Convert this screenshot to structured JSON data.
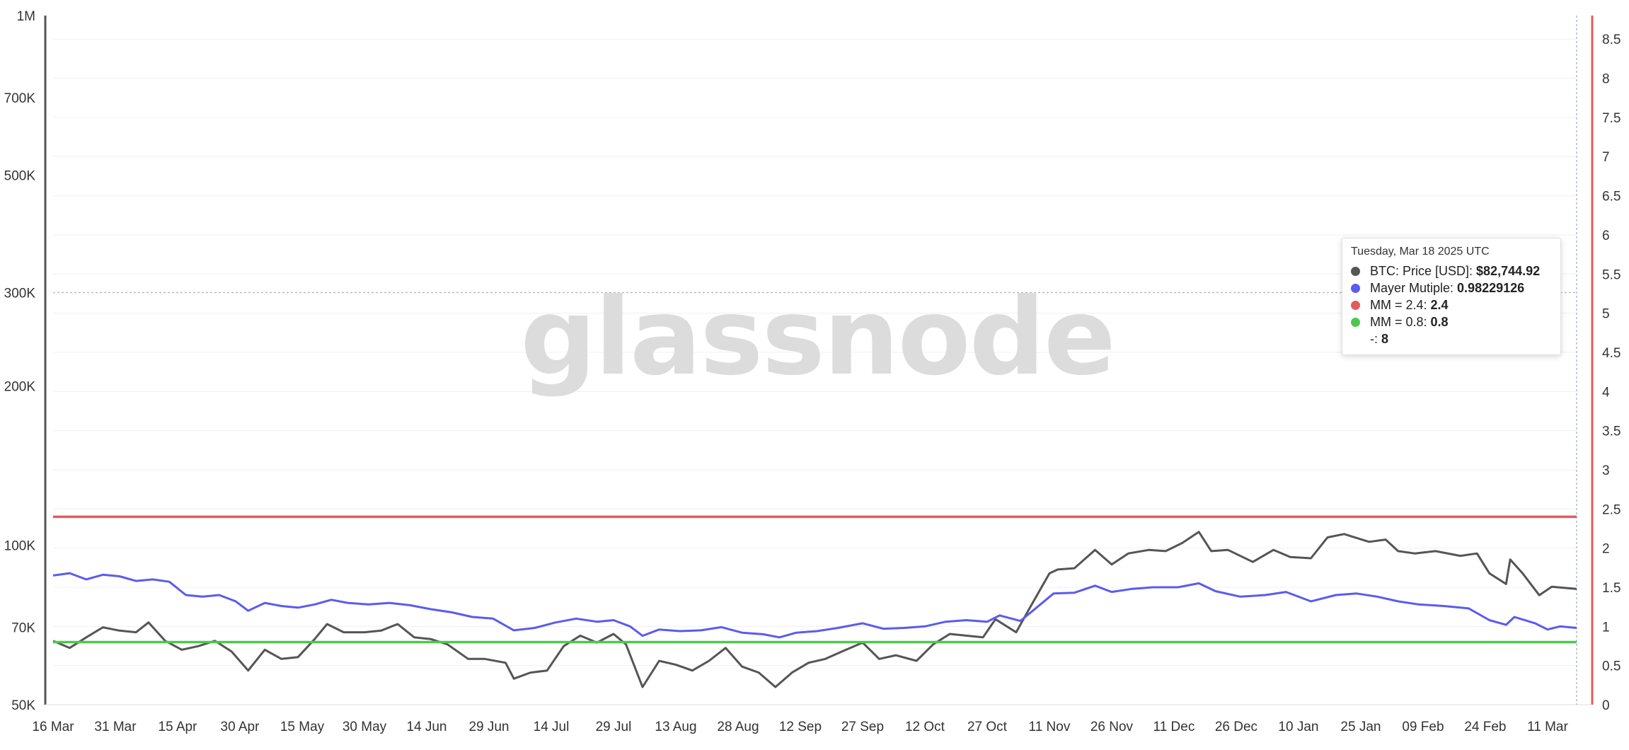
{
  "watermark": "glassnode",
  "tooltip": {
    "date": "Tuesday, Mar 18 2025 UTC",
    "rows": [
      {
        "label": "BTC: Price [USD]:",
        "value": "$82,744.92",
        "color": "#555555"
      },
      {
        "label": "Mayer Mutiple:",
        "value": "0.98229126",
        "color": "#5b5bef"
      },
      {
        "label": "MM = 2.4:",
        "value": "2.4",
        "color": "#e35b5b"
      },
      {
        "label": "MM = 0.8:",
        "value": "0.8",
        "color": "#4cc94c"
      },
      {
        "label": "-:",
        "value": "8",
        "color": ""
      }
    ]
  },
  "chart_data": {
    "type": "line",
    "x_axis": {
      "start": "2024-03-16",
      "end": "2025-03-18",
      "tick_labels": [
        "16 Mar",
        "31 Mar",
        "15 Apr",
        "30 Apr",
        "15 May",
        "30 May",
        "14 Jun",
        "29 Jun",
        "14 Jul",
        "29 Jul",
        "13 Aug",
        "28 Aug",
        "12 Sep",
        "27 Sep",
        "12 Oct",
        "27 Oct",
        "11 Nov",
        "26 Nov",
        "11 Dec",
        "26 Dec",
        "10 Jan",
        "25 Jan",
        "09 Feb",
        "24 Feb",
        "11 Mar"
      ]
    },
    "y_left": {
      "scale": "log",
      "ylim": [
        50000,
        1000000
      ],
      "tick_values": [
        50000,
        70000,
        100000,
        200000,
        300000,
        500000,
        700000,
        1000000
      ],
      "tick_labels": [
        "50K",
        "70K",
        "100K",
        "200K",
        "300K",
        "500K",
        "700K",
        "1M"
      ],
      "dashed_gridline": 300000
    },
    "y_right": {
      "scale": "linear",
      "ylim": [
        0,
        8.8
      ],
      "tick_labels": [
        "0",
        "0.5",
        "1",
        "1.5",
        "2",
        "2.5",
        "3",
        "3.5",
        "4",
        "4.5",
        "5",
        "5.5",
        "6",
        "6.5",
        "7",
        "7.5",
        "8",
        "8.5"
      ]
    },
    "series": [
      {
        "name": "BTC: Price [USD]",
        "axis": "left",
        "color": "#555555",
        "points": [
          [
            "2024-03-16",
            66000
          ],
          [
            "2024-03-20",
            64000
          ],
          [
            "2024-03-24",
            67000
          ],
          [
            "2024-03-28",
            70000
          ],
          [
            "2024-04-01",
            69000
          ],
          [
            "2024-04-05",
            68500
          ],
          [
            "2024-04-08",
            71500
          ],
          [
            "2024-04-12",
            66000
          ],
          [
            "2024-04-16",
            63500
          ],
          [
            "2024-04-20",
            64500
          ],
          [
            "2024-04-24",
            66000
          ],
          [
            "2024-04-28",
            63000
          ],
          [
            "2024-05-02",
            58000
          ],
          [
            "2024-05-06",
            63500
          ],
          [
            "2024-05-10",
            61000
          ],
          [
            "2024-05-14",
            61500
          ],
          [
            "2024-05-18",
            66500
          ],
          [
            "2024-05-21",
            71000
          ],
          [
            "2024-05-25",
            68500
          ],
          [
            "2024-05-30",
            68500
          ],
          [
            "2024-06-03",
            69000
          ],
          [
            "2024-06-07",
            71000
          ],
          [
            "2024-06-11",
            67000
          ],
          [
            "2024-06-15",
            66500
          ],
          [
            "2024-06-19",
            65000
          ],
          [
            "2024-06-24",
            61000
          ],
          [
            "2024-06-28",
            61000
          ],
          [
            "2024-07-03",
            60000
          ],
          [
            "2024-07-05",
            56000
          ],
          [
            "2024-07-09",
            57500
          ],
          [
            "2024-07-13",
            58000
          ],
          [
            "2024-07-17",
            64500
          ],
          [
            "2024-07-21",
            67500
          ],
          [
            "2024-07-25",
            65500
          ],
          [
            "2024-07-29",
            68000
          ],
          [
            "2024-08-01",
            65000
          ],
          [
            "2024-08-05",
            54000
          ],
          [
            "2024-08-09",
            60500
          ],
          [
            "2024-08-13",
            59500
          ],
          [
            "2024-08-17",
            58000
          ],
          [
            "2024-08-21",
            60500
          ],
          [
            "2024-08-25",
            64000
          ],
          [
            "2024-08-29",
            59000
          ],
          [
            "2024-09-02",
            57500
          ],
          [
            "2024-09-06",
            54000
          ],
          [
            "2024-09-10",
            57500
          ],
          [
            "2024-09-14",
            60000
          ],
          [
            "2024-09-18",
            61000
          ],
          [
            "2024-09-22",
            63000
          ],
          [
            "2024-09-27",
            65500
          ],
          [
            "2024-10-01",
            61000
          ],
          [
            "2024-10-05",
            62000
          ],
          [
            "2024-10-10",
            60500
          ],
          [
            "2024-10-14",
            65000
          ],
          [
            "2024-10-18",
            68000
          ],
          [
            "2024-10-22",
            67500
          ],
          [
            "2024-10-26",
            67000
          ],
          [
            "2024-10-29",
            72500
          ],
          [
            "2024-11-03",
            68500
          ],
          [
            "2024-11-06",
            75500
          ],
          [
            "2024-11-11",
            88500
          ],
          [
            "2024-11-13",
            90000
          ],
          [
            "2024-11-17",
            90500
          ],
          [
            "2024-11-22",
            98000
          ],
          [
            "2024-11-26",
            92000
          ],
          [
            "2024-11-30",
            96500
          ],
          [
            "2024-12-05",
            98000
          ],
          [
            "2024-12-09",
            97500
          ],
          [
            "2024-12-13",
            101000
          ],
          [
            "2024-12-17",
            106000
          ],
          [
            "2024-12-20",
            97500
          ],
          [
            "2024-12-24",
            98000
          ],
          [
            "2024-12-30",
            93000
          ],
          [
            "2025-01-04",
            98000
          ],
          [
            "2025-01-08",
            95000
          ],
          [
            "2025-01-13",
            94500
          ],
          [
            "2025-01-17",
            103500
          ],
          [
            "2025-01-21",
            105000
          ],
          [
            "2025-01-27",
            101500
          ],
          [
            "2025-01-31",
            102500
          ],
          [
            "2025-02-03",
            97500
          ],
          [
            "2025-02-07",
            96500
          ],
          [
            "2025-02-12",
            97500
          ],
          [
            "2025-02-18",
            95500
          ],
          [
            "2025-02-22",
            96500
          ],
          [
            "2025-02-25",
            88500
          ],
          [
            "2025-03-01",
            84500
          ],
          [
            "2025-03-02",
            94000
          ],
          [
            "2025-03-05",
            88500
          ],
          [
            "2025-03-09",
            80500
          ],
          [
            "2025-03-12",
            83500
          ],
          [
            "2025-03-18",
            82700
          ]
        ]
      },
      {
        "name": "Mayer Mutiple",
        "axis": "right",
        "color": "#5b5bef",
        "points": [
          [
            "2024-03-16",
            1.65
          ],
          [
            "2024-03-20",
            1.68
          ],
          [
            "2024-03-24",
            1.6
          ],
          [
            "2024-03-28",
            1.66
          ],
          [
            "2024-04-01",
            1.64
          ],
          [
            "2024-04-05",
            1.58
          ],
          [
            "2024-04-09",
            1.6
          ],
          [
            "2024-04-13",
            1.57
          ],
          [
            "2024-04-17",
            1.4
          ],
          [
            "2024-04-21",
            1.38
          ],
          [
            "2024-04-25",
            1.4
          ],
          [
            "2024-04-29",
            1.32
          ],
          [
            "2024-05-02",
            1.2
          ],
          [
            "2024-05-06",
            1.3
          ],
          [
            "2024-05-10",
            1.26
          ],
          [
            "2024-05-14",
            1.24
          ],
          [
            "2024-05-18",
            1.28
          ],
          [
            "2024-05-22",
            1.34
          ],
          [
            "2024-05-26",
            1.3
          ],
          [
            "2024-05-31",
            1.28
          ],
          [
            "2024-06-05",
            1.3
          ],
          [
            "2024-06-10",
            1.27
          ],
          [
            "2024-06-15",
            1.22
          ],
          [
            "2024-06-20",
            1.18
          ],
          [
            "2024-06-25",
            1.12
          ],
          [
            "2024-06-30",
            1.1
          ],
          [
            "2024-07-05",
            0.95
          ],
          [
            "2024-07-10",
            0.98
          ],
          [
            "2024-07-15",
            1.05
          ],
          [
            "2024-07-20",
            1.1
          ],
          [
            "2024-07-25",
            1.06
          ],
          [
            "2024-07-29",
            1.08
          ],
          [
            "2024-08-02",
            1.0
          ],
          [
            "2024-08-05",
            0.88
          ],
          [
            "2024-08-09",
            0.96
          ],
          [
            "2024-08-14",
            0.94
          ],
          [
            "2024-08-19",
            0.95
          ],
          [
            "2024-08-24",
            0.99
          ],
          [
            "2024-08-29",
            0.92
          ],
          [
            "2024-09-03",
            0.9
          ],
          [
            "2024-09-07",
            0.86
          ],
          [
            "2024-09-11",
            0.92
          ],
          [
            "2024-09-16",
            0.94
          ],
          [
            "2024-09-21",
            0.98
          ],
          [
            "2024-09-27",
            1.04
          ],
          [
            "2024-10-02",
            0.97
          ],
          [
            "2024-10-07",
            0.98
          ],
          [
            "2024-10-12",
            1.0
          ],
          [
            "2024-10-17",
            1.06
          ],
          [
            "2024-10-22",
            1.08
          ],
          [
            "2024-10-27",
            1.06
          ],
          [
            "2024-10-30",
            1.14
          ],
          [
            "2024-11-04",
            1.07
          ],
          [
            "2024-11-07",
            1.2
          ],
          [
            "2024-11-12",
            1.42
          ],
          [
            "2024-11-17",
            1.43
          ],
          [
            "2024-11-22",
            1.52
          ],
          [
            "2024-11-26",
            1.44
          ],
          [
            "2024-12-01",
            1.48
          ],
          [
            "2024-12-06",
            1.5
          ],
          [
            "2024-12-12",
            1.5
          ],
          [
            "2024-12-17",
            1.55
          ],
          [
            "2024-12-21",
            1.45
          ],
          [
            "2024-12-27",
            1.38
          ],
          [
            "2025-01-02",
            1.4
          ],
          [
            "2025-01-07",
            1.44
          ],
          [
            "2025-01-13",
            1.32
          ],
          [
            "2025-01-19",
            1.4
          ],
          [
            "2025-01-24",
            1.42
          ],
          [
            "2025-01-29",
            1.38
          ],
          [
            "2025-02-03",
            1.32
          ],
          [
            "2025-02-08",
            1.28
          ],
          [
            "2025-02-14",
            1.26
          ],
          [
            "2025-02-20",
            1.23
          ],
          [
            "2025-02-25",
            1.08
          ],
          [
            "2025-03-01",
            1.02
          ],
          [
            "2025-03-03",
            1.12
          ],
          [
            "2025-03-08",
            1.04
          ],
          [
            "2025-03-11",
            0.96
          ],
          [
            "2025-03-14",
            1.0
          ],
          [
            "2025-03-18",
            0.98
          ]
        ]
      },
      {
        "name": "MM = 2.4",
        "axis": "right",
        "color": "#e35b5b",
        "values": [
          2.4,
          2.4
        ]
      },
      {
        "name": "MM = 0.8",
        "axis": "right",
        "color": "#4cc94c",
        "values": [
          0.8,
          0.8
        ]
      }
    ]
  }
}
